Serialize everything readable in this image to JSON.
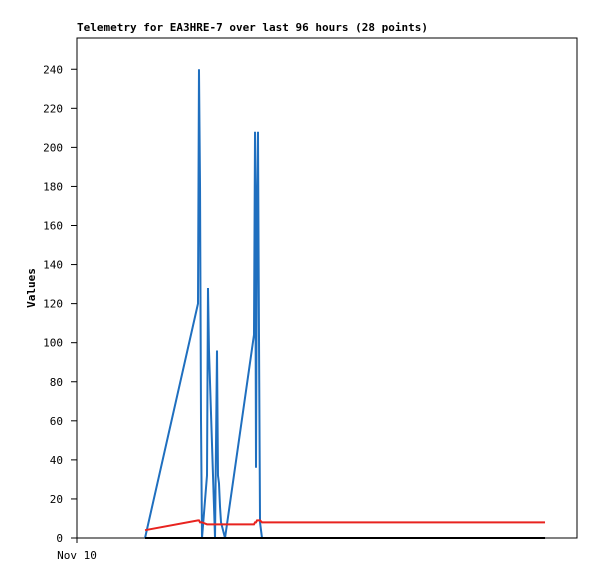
{
  "chart_data": {
    "type": "line",
    "title": "Telemetry for EA3HRE-7 over last 96 hours (28 points)",
    "y_label": "Values",
    "x": [
      13.06,
      23.23,
      23.42,
      23.62,
      23.81,
      24.0,
      24.96,
      25.15,
      25.34,
      26.5,
      26.69,
      26.88,
      27.07,
      27.26,
      27.46,
      27.65,
      28.42,
      33.98,
      34.18,
      34.37,
      34.56,
      34.75,
      34.94,
      35.14,
      35.52,
      36.1,
      37.06,
      89.86
    ],
    "series": [
      {
        "color": "#1f6fbf",
        "values": [
          0,
          120,
          240,
          180,
          60,
          0,
          32,
          128,
          96,
          0,
          48,
          96,
          32,
          28,
          16,
          8,
          0,
          104,
          208,
          36,
          174,
          208,
          104,
          8,
          0,
          0,
          0,
          0
        ]
      },
      {
        "color": "#e8231f",
        "values": [
          4,
          9,
          9,
          8,
          8,
          8,
          7,
          7,
          7,
          7,
          7,
          7,
          7,
          7,
          7,
          7,
          7,
          7,
          8,
          8,
          9,
          9,
          9,
          9,
          8,
          8,
          8,
          8
        ]
      },
      {
        "color": "#000000",
        "values": [
          0,
          0,
          0,
          0,
          0,
          0,
          0,
          0,
          0,
          0,
          0,
          0,
          0,
          0,
          0,
          0,
          0,
          0,
          0,
          0,
          0,
          0,
          0,
          0,
          0,
          0,
          0,
          0
        ]
      }
    ],
    "xlim": [
      0,
      96
    ],
    "xticks": [
      {
        "value": 0,
        "label": "Nov 10"
      }
    ],
    "ylim": [
      0,
      256
    ],
    "yticks": [
      0,
      20,
      40,
      60,
      80,
      100,
      120,
      140,
      160,
      180,
      200,
      220,
      240
    ],
    "grid": false
  }
}
